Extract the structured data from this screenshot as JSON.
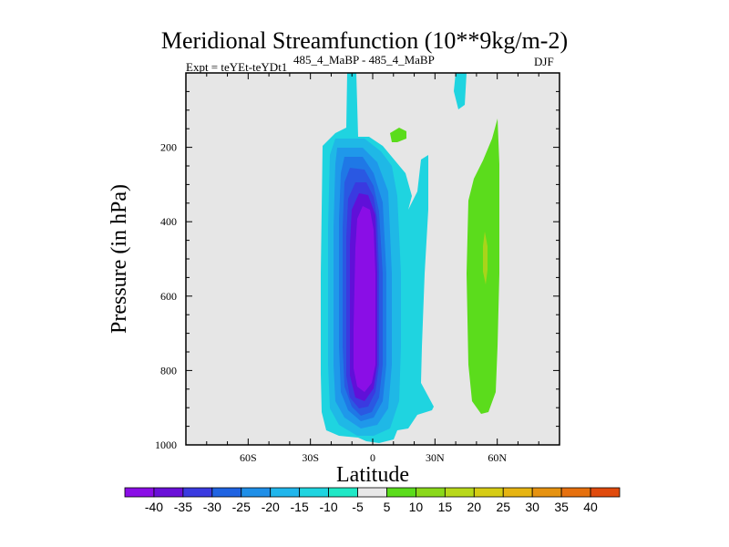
{
  "chart_data": {
    "type": "contour",
    "title": "Meridional Streamfunction (10**9kg/m-2)",
    "subtitle_left": "Expt = teYEt-teYDt1",
    "subtitle_center": "485_4_MaBP - 485_4_MaBP",
    "subtitle_right": "DJF",
    "xlabel": "Latitude",
    "ylabel": "Pressure (in hPa)",
    "xlim": [
      -90,
      90
    ],
    "ylim": [
      1000,
      0
    ],
    "x_ticks": [
      {
        "value": -60,
        "label": "60S"
      },
      {
        "value": -30,
        "label": "30S"
      },
      {
        "value": 0,
        "label": "0"
      },
      {
        "value": 30,
        "label": "30N"
      },
      {
        "value": 60,
        "label": "60N"
      }
    ],
    "y_ticks": [
      {
        "value": 200,
        "label": "200"
      },
      {
        "value": 400,
        "label": "400"
      },
      {
        "value": 600,
        "label": "600"
      },
      {
        "value": 800,
        "label": "800"
      },
      {
        "value": 1000,
        "label": "1000"
      }
    ],
    "colorbar": {
      "labels": [
        "-40",
        "-35",
        "-30",
        "-25",
        "-20",
        "-15",
        "-10",
        "-5",
        "5",
        "10",
        "15",
        "20",
        "25",
        "30",
        "35",
        "40"
      ],
      "colors": [
        "#8a0ee6",
        "#6a10d8",
        "#3a3ae0",
        "#1f63e2",
        "#1f8fe8",
        "#20b6ec",
        "#1fd4e0",
        "#1fe8c6",
        "#e8e8e8",
        "#5bdc1c",
        "#8ad81a",
        "#b8d81a",
        "#d6cc14",
        "#e6b412",
        "#e69210",
        "#e6700e",
        "#e04a0c"
      ]
    },
    "fields": [
      {
        "name": "southern-hemisphere-negative-cell",
        "min_value": -40,
        "lat_range": [
          -25,
          10
        ],
        "p_range": [
          60,
          990
        ],
        "core_lat": -3,
        "core_p_range": [
          220,
          900
        ]
      },
      {
        "name": "northern-positive-cell",
        "max_value": 15,
        "lat_range": [
          45,
          60
        ],
        "p_range": [
          140,
          920
        ],
        "core_lat": 54
      }
    ]
  }
}
